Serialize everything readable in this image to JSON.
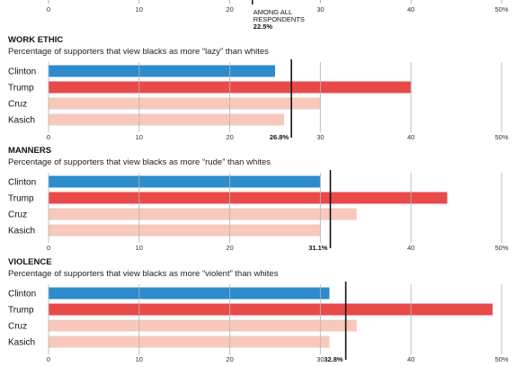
{
  "top_axis": {
    "ticks": [
      "0",
      "10",
      "20",
      "30",
      "40",
      "50%"
    ],
    "annotation_lines": [
      "AMONG ALL",
      "RESPONDENTS"
    ],
    "annotation_value": "22.5%",
    "annotation_x": 22.5
  },
  "colors": {
    "clinton": "#2d8ccc",
    "trump": "#e84a4a",
    "other": "#f7c8bc",
    "gridline": "#b5b5b5",
    "average_line": "#111111"
  },
  "chart_data": [
    {
      "type": "bar",
      "orientation": "horizontal",
      "title": "WORK ETHIC",
      "subtitle": "Percentage of supporters that view blacks as more “lazy” than whites",
      "categories": [
        "Clinton",
        "Trump",
        "Cruz",
        "Kasich"
      ],
      "values": [
        25,
        40,
        30,
        26
      ],
      "average": 26.8,
      "average_label": "26.8%",
      "xlim": [
        0,
        50
      ],
      "ticks": [
        "0",
        "10",
        "20",
        "30",
        "40",
        "50%"
      ]
    },
    {
      "type": "bar",
      "orientation": "horizontal",
      "title": "MANNERS",
      "subtitle": "Percentage of supporters that view blacks as more “rude” than whites",
      "categories": [
        "Clinton",
        "Trump",
        "Cruz",
        "Kasich"
      ],
      "values": [
        30,
        44,
        34,
        30
      ],
      "average": 31.1,
      "average_label": "31.1%",
      "xlim": [
        0,
        50
      ],
      "ticks": [
        "0",
        "10",
        "20",
        "30",
        "40",
        "50%"
      ]
    },
    {
      "type": "bar",
      "orientation": "horizontal",
      "title": "VIOLENCE",
      "subtitle": "Percentage of supporters that view blacks as more “violent” than whites",
      "categories": [
        "Clinton",
        "Trump",
        "Cruz",
        "Kasich"
      ],
      "values": [
        31,
        49,
        34,
        31
      ],
      "average": 32.8,
      "average_label": "32.8%",
      "xlim": [
        0,
        50
      ],
      "ticks": [
        "0",
        "10",
        "20",
        "30",
        "40",
        "50%"
      ]
    }
  ]
}
